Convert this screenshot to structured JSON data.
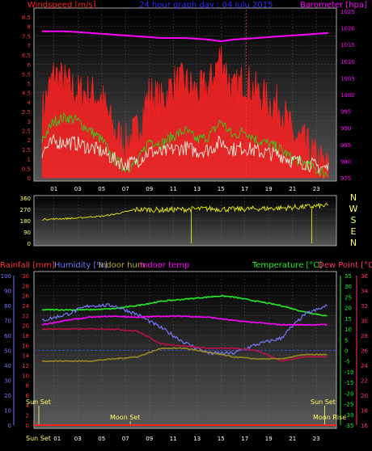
{
  "panel1": {
    "title_left": "Windspeed [m/s]",
    "title_center": "24 hour graph day : 04 Julu 2015",
    "title_right": "Barometer [hpa]",
    "colors": {
      "left": "#ff2020",
      "center": "#2a2aff",
      "right": "#ff00ff"
    }
  },
  "panel2": {
    "compass": [
      "N",
      "W",
      "S",
      "E",
      "N"
    ]
  },
  "panel3": {
    "title_rain": "Rainfall [mm]",
    "title_humidity": "Humidity [%]",
    "title_indoor_hum": "Indoor hum",
    "title_indoor_temp": "Indoor temp",
    "title_temperature": "Temperature [°C]",
    "title_dewpoint": "Dew Point [°C]",
    "sun_set_left": "Sun Set",
    "sun_set_right": "Sun Set",
    "moon_set": "Moon Set",
    "moon_rise": "Moon Rise",
    "sun_set_axis": "Sun Set"
  },
  "chart_data": [
    {
      "type": "line",
      "panel": "wind-barometer",
      "x_ticks": [
        "01",
        "03",
        "05",
        "07",
        "09",
        "11",
        "13",
        "15",
        "17",
        "19",
        "21",
        "23"
      ],
      "y_left": {
        "ticks": [
          0,
          0.5,
          1,
          1.5,
          2,
          2.5,
          3,
          3.5,
          4,
          4.5,
          5,
          5.5,
          6,
          6.5,
          7,
          7.5,
          8,
          8.5
        ],
        "range": [
          0,
          8.8
        ]
      },
      "y_right": {
        "ticks": [
          975,
          980,
          985,
          990,
          995,
          1000,
          1005,
          1010,
          1015,
          1020,
          1025
        ],
        "range": [
          975,
          1025
        ]
      },
      "series": [
        {
          "name": "Barometer",
          "color": "#ff00ff",
          "x": [
            0,
            2,
            4,
            6,
            8,
            10,
            12,
            14,
            15,
            16,
            18,
            20,
            22,
            24
          ],
          "y": [
            1019,
            1019,
            1018.5,
            1018,
            1017.5,
            1017,
            1017,
            1016.5,
            1016,
            1016.5,
            1017,
            1017.5,
            1018,
            1018.5
          ]
        },
        {
          "name": "Windspeed gust",
          "color": "#ff2020",
          "x": [
            0,
            1,
            2,
            3,
            4,
            5,
            6,
            7,
            8,
            9,
            10,
            11,
            12,
            13,
            14,
            15,
            16,
            17,
            18,
            19,
            20,
            21,
            22,
            23,
            24
          ],
          "y": [
            3.5,
            5.5,
            5,
            4.5,
            4.5,
            4.2,
            2.5,
            1.8,
            2.5,
            4.5,
            4,
            5,
            5,
            4.5,
            4.8,
            6.5,
            4.5,
            5.2,
            4.5,
            4,
            3.8,
            2.2,
            1.8,
            1,
            0.5
          ]
        },
        {
          "name": "Windspeed average",
          "color": "#22dd22",
          "x": [
            0,
            1,
            2,
            3,
            4,
            5,
            6,
            7,
            8,
            9,
            10,
            11,
            12,
            13,
            14,
            15,
            16,
            17,
            18,
            19,
            20,
            21,
            22,
            23,
            24
          ],
          "y": [
            2,
            3,
            3.2,
            3,
            2.5,
            2,
            1,
            0.5,
            0.8,
            2,
            1.8,
            2.2,
            2.5,
            2,
            2.2,
            3,
            2.2,
            2.5,
            2,
            1.8,
            1.5,
            1,
            0.8,
            0.4,
            0.2
          ]
        },
        {
          "name": "Windspeed",
          "color": "#e8ffe8",
          "x": [
            0,
            1,
            2,
            3,
            4,
            5,
            6,
            7,
            8,
            9,
            10,
            11,
            12,
            13,
            14,
            15,
            16,
            17,
            18,
            19,
            20,
            21,
            22,
            23,
            24
          ],
          "y": [
            1,
            1.5,
            1.5,
            1.4,
            1.2,
            1,
            0.6,
            0.3,
            0.5,
            1,
            0.9,
            1.1,
            1.2,
            1,
            1.1,
            1.5,
            1.1,
            1.2,
            1,
            0.9,
            0.8,
            0.5,
            0.4,
            0.2,
            0.1
          ]
        }
      ]
    },
    {
      "type": "line",
      "panel": "wind-direction",
      "x_ticks": [
        "01",
        "03",
        "05",
        "07",
        "09",
        "11",
        "13",
        "15",
        "17",
        "19",
        "21",
        "23"
      ],
      "y_left": {
        "ticks": [
          0,
          90,
          180,
          270,
          360
        ],
        "range": [
          0,
          360
        ]
      },
      "series": [
        {
          "name": "Wind direction",
          "color": "#ffff00",
          "x": [
            0,
            3,
            4,
            5,
            6,
            7,
            8,
            10,
            12,
            14,
            16,
            18,
            20,
            22,
            24
          ],
          "y": [
            190,
            200,
            210,
            215,
            230,
            250,
            270,
            265,
            270,
            275,
            270,
            275,
            280,
            290,
            300
          ]
        }
      ]
    },
    {
      "type": "line",
      "panel": "temperature-humidity",
      "x_ticks": [
        "01",
        "03",
        "05",
        "07",
        "09",
        "11",
        "13",
        "15",
        "17",
        "19",
        "21",
        "23"
      ],
      "x_start_label": "Sun Set",
      "y_rain": {
        "ticks": [
          0,
          2,
          4,
          6,
          8,
          10,
          12,
          14,
          16,
          18,
          20,
          22,
          24,
          26,
          28,
          30
        ]
      },
      "y_humidity": {
        "ticks": [
          0,
          10,
          20,
          30,
          40,
          50,
          60,
          70,
          80,
          90,
          100
        ]
      },
      "y_temperature": {
        "ticks": [
          -35,
          -30,
          -25,
          -20,
          -15,
          -10,
          -5,
          0,
          5,
          10,
          15,
          20,
          25,
          30,
          35
        ]
      },
      "y_dewpoint": {
        "ticks": [
          16,
          18,
          20,
          22,
          24,
          26,
          28,
          30,
          32,
          34,
          36
        ]
      },
      "series": [
        {
          "name": "Temperature",
          "color": "#22ee22",
          "x": [
            0,
            2,
            4,
            6,
            8,
            10,
            12,
            14,
            15,
            16,
            18,
            20,
            22,
            24
          ],
          "y": [
            19,
            19,
            19,
            19.5,
            21,
            23,
            24,
            25,
            25.5,
            25,
            23,
            21,
            18,
            16
          ]
        },
        {
          "name": "Humidity",
          "color": "#7777ff",
          "x": [
            0,
            2,
            4,
            6,
            8,
            10,
            12,
            14,
            16,
            18,
            20,
            22,
            24
          ],
          "y": [
            70,
            74,
            80,
            80,
            74,
            65,
            55,
            48,
            48,
            54,
            58,
            74,
            80
          ]
        },
        {
          "name": "Indoor temp",
          "color": "#ff00ff",
          "x": [
            0,
            2,
            4,
            6,
            8,
            10,
            12,
            14,
            16,
            18,
            20,
            22,
            24
          ],
          "y": [
            12,
            14,
            15.5,
            16,
            15.5,
            16,
            16,
            15.5,
            14,
            13,
            12,
            12,
            12
          ]
        },
        {
          "name": "Dew Point",
          "color": "#bb1144",
          "x": [
            0,
            2,
            4,
            6,
            8,
            10,
            12,
            14,
            16,
            18,
            20,
            22,
            24
          ],
          "y": [
            10,
            10,
            10,
            10,
            9,
            3,
            2,
            1,
            1,
            0,
            -5,
            -3,
            -3
          ]
        },
        {
          "name": "Indoor hum",
          "color": "#998822",
          "x": [
            0,
            2,
            4,
            6,
            8,
            10,
            12,
            14,
            16,
            18,
            20,
            22,
            24
          ],
          "y": [
            -5,
            -5,
            -5,
            -4,
            -3,
            1,
            1,
            -1,
            -3,
            -4,
            -4,
            -2,
            -2
          ]
        }
      ]
    }
  ]
}
